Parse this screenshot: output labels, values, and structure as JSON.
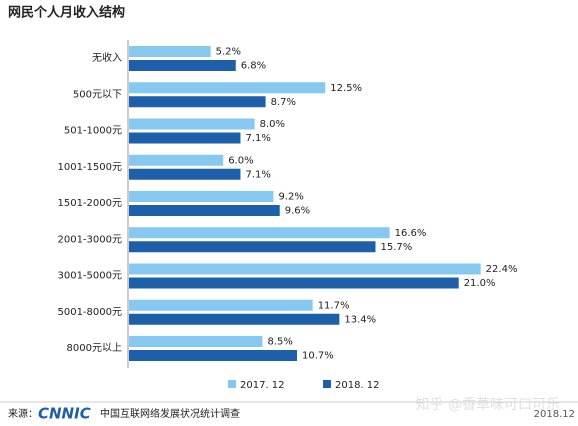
{
  "chart_data": {
    "type": "hbar",
    "title": "网民个人月收入结构",
    "categories": [
      "无收入",
      "500元以下",
      "501-1000元",
      "1001-1500元",
      "1501-2000元",
      "2001-3000元",
      "3001-5000元",
      "5001-8000元",
      "8000元以上"
    ],
    "series": [
      {
        "name": "2017. 12",
        "color": "#86c8f0",
        "values": [
          5.2,
          12.5,
          8.0,
          6.0,
          9.2,
          16.6,
          22.4,
          11.7,
          8.5
        ],
        "value_labels": [
          "5.2%",
          "12.5%",
          "8.0%",
          "6.0%",
          "9.2%",
          "16.6%",
          "22.4%",
          "11.7%",
          "8.5%"
        ]
      },
      {
        "name": "2018. 12",
        "color": "#1d5fa8",
        "values": [
          6.8,
          8.7,
          7.1,
          7.1,
          9.6,
          15.7,
          21.0,
          13.4,
          10.7
        ],
        "value_labels": [
          "6.8%",
          "8.7%",
          "7.1%",
          "7.1%",
          "9.6%",
          "15.7%",
          "21.0%",
          "13.4%",
          "10.7%"
        ]
      }
    ],
    "source_label": "来源：",
    "source_logo": "CNNIC",
    "source": "中国互联网络发展状况统计调查",
    "date": "2018.12",
    "watermark": "知乎 @香草味可口可乐"
  }
}
